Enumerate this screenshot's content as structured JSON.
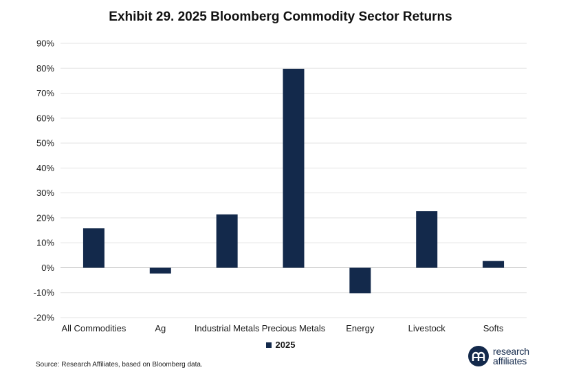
{
  "colors": {
    "bar": "#13294b",
    "grid": "#e3e3e3",
    "axis": "#bdbdbd"
  },
  "chart_data": {
    "type": "bar",
    "title": "Exhibit 29. 2025 Bloomberg Commodity Sector Returns",
    "categories": [
      "All Commodities",
      "Ag",
      "Industrial Metals",
      "Precious Metals",
      "Energy",
      "Livestock",
      "Softs"
    ],
    "series": [
      {
        "name": "2025",
        "values": [
          15.8,
          -2.3,
          21.4,
          79.8,
          -10.2,
          22.7,
          2.7
        ]
      }
    ],
    "ylim": [
      -20,
      90
    ],
    "yticks": [
      -20,
      -10,
      0,
      10,
      20,
      30,
      40,
      50,
      60,
      70,
      80,
      90
    ],
    "ytick_format": "percent",
    "grid": true,
    "legend": "bottom-center"
  },
  "footer": {
    "source": "Source: Research Affiliates, based on Bloomberg data.",
    "logo_line1": "research",
    "logo_line2": "affiliates",
    "logo_icon": "research-affiliates-logo-icon"
  }
}
